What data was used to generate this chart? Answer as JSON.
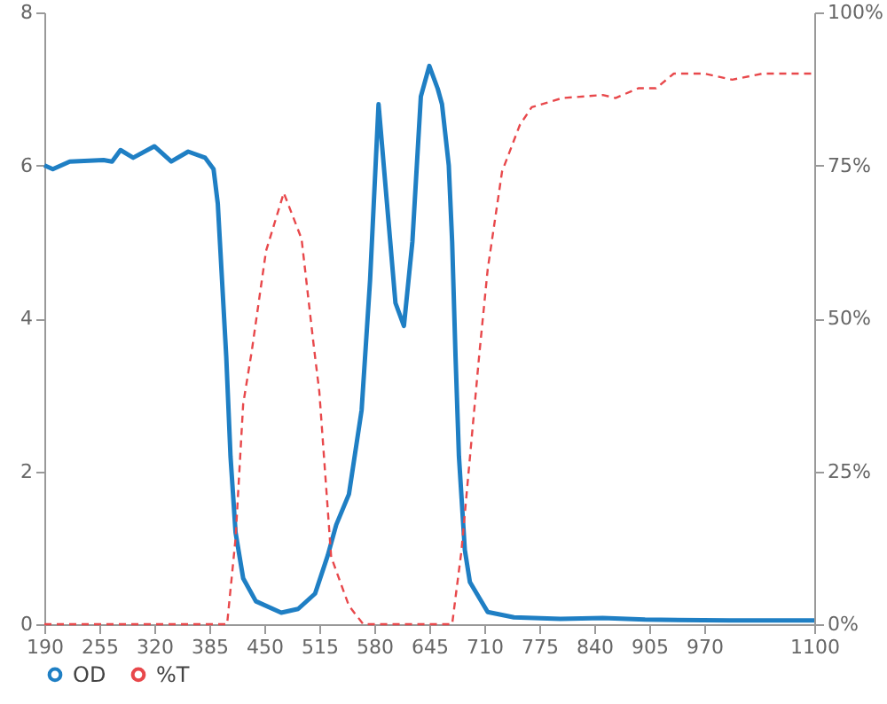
{
  "chart_data": {
    "type": "line",
    "xlim": [
      190,
      1100
    ],
    "xticks": [
      190,
      255,
      320,
      385,
      450,
      515,
      580,
      645,
      710,
      775,
      840,
      905,
      970,
      1100
    ],
    "ylim": [
      0,
      8
    ],
    "yticks": [
      0,
      2,
      4,
      6,
      8
    ],
    "y2lim": [
      0,
      100
    ],
    "y2ticks": [
      {
        "value": 0,
        "label": "0%"
      },
      {
        "value": 25,
        "label": "25%"
      },
      {
        "value": 50,
        "label": "50%"
      },
      {
        "value": 75,
        "label": "75%"
      },
      {
        "value": 100,
        "label": "100%"
      }
    ],
    "grid": false,
    "legend": "bottom",
    "marker": "none",
    "series": [
      {
        "name": "OD",
        "color": "#1f7fc4",
        "line_style": "solid",
        "x": [
          190,
          200,
          220,
          260,
          270,
          280,
          295,
          320,
          340,
          360,
          380,
          390,
          395,
          405,
          410,
          416,
          425,
          440,
          470,
          490,
          510,
          525,
          535,
          550,
          565,
          575,
          585,
          595,
          605,
          615,
          625,
          635,
          645,
          655,
          660,
          668,
          672,
          676,
          680,
          687,
          693,
          714,
          745,
          800,
          850,
          900,
          1000,
          1100
        ],
        "values": [
          6.0,
          5.95,
          6.05,
          6.07,
          6.05,
          6.2,
          6.1,
          6.25,
          6.05,
          6.18,
          6.1,
          5.95,
          5.5,
          3.5,
          2.2,
          1.2,
          0.6,
          0.3,
          0.15,
          0.2,
          0.4,
          0.9,
          1.3,
          1.7,
          2.8,
          4.5,
          6.8,
          5.5,
          4.2,
          3.9,
          5.0,
          6.9,
          7.3,
          7.0,
          6.8,
          6.0,
          5.0,
          3.5,
          2.2,
          0.97,
          0.55,
          0.16,
          0.09,
          0.07,
          0.08,
          0.06,
          0.05,
          0.05
        ]
      },
      {
        "name": "%T",
        "color": "#e8484b",
        "line_style": "dashed",
        "axis": "y2",
        "x": [
          190,
          300,
          406,
          416,
          425,
          435,
          452,
          473,
          494,
          508,
          515,
          529,
          550,
          567,
          672,
          683,
          704,
          714,
          731,
          752,
          766,
          802,
          850,
          865,
          892,
          913,
          934,
          970,
          1003,
          1039,
          1100
        ],
        "values": [
          0,
          0,
          0,
          14,
          36,
          44.5,
          61,
          70.5,
          63,
          46,
          38,
          11,
          3,
          0,
          0,
          12,
          44,
          58,
          74,
          81.6,
          84.5,
          86,
          86.5,
          86,
          87.6,
          87.6,
          90,
          90,
          89,
          90,
          90
        ]
      }
    ]
  }
}
